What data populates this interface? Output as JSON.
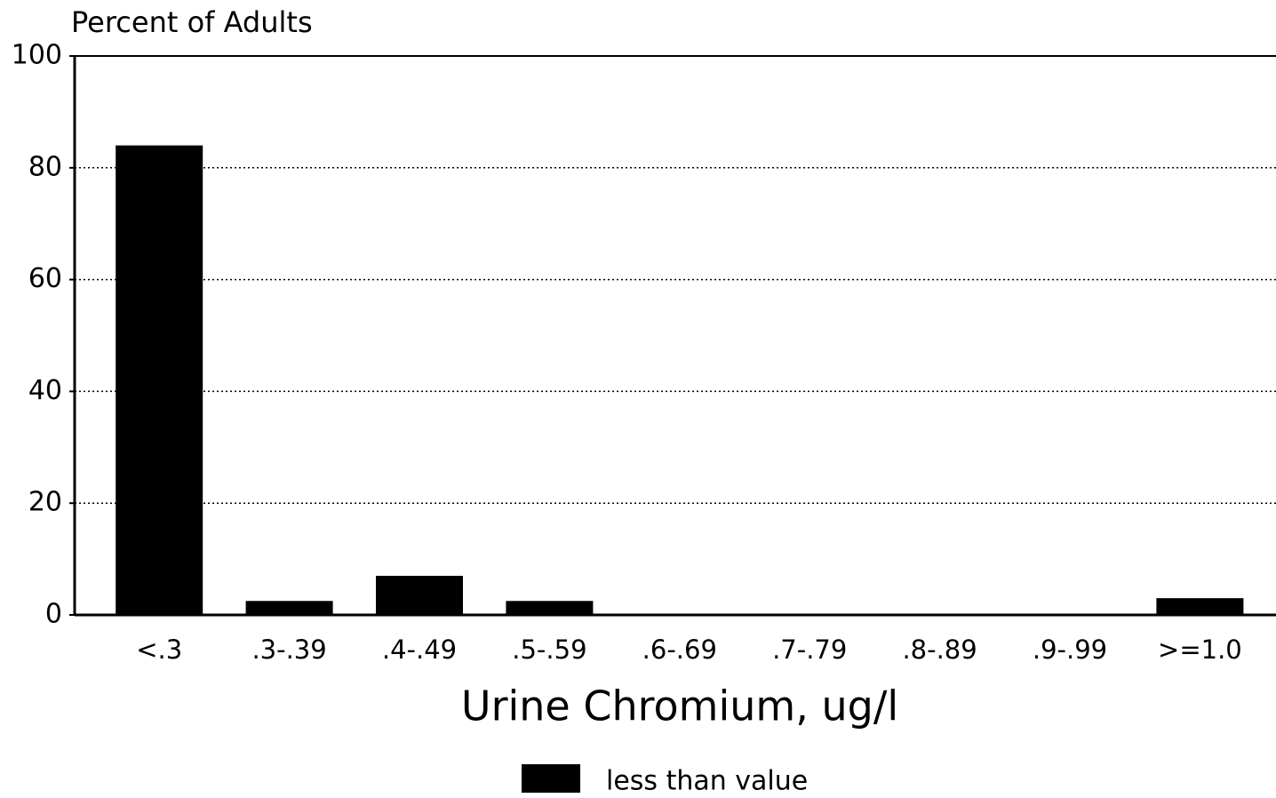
{
  "chart_data": {
    "type": "bar",
    "y_label": "Percent of Adults",
    "x_label": "Urine Chromium, ug/l",
    "categories": [
      "<.3",
      ".3-.39",
      ".4-.49",
      ".5-.59",
      ".6-.69",
      ".7-.79",
      ".8-.89",
      ".9-.99",
      ">=1.0"
    ],
    "series": [
      {
        "name": "less than value",
        "color": "#000000",
        "values": [
          84,
          2.5,
          7,
          2.5,
          0,
          0,
          0,
          0,
          3
        ]
      }
    ],
    "ylim": [
      0,
      100
    ],
    "yticks": [
      0,
      20,
      40,
      60,
      80,
      100
    ],
    "grid": true,
    "legend": "bottom"
  }
}
